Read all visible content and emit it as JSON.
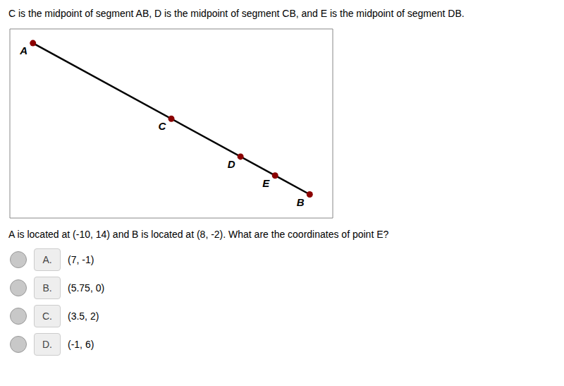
{
  "chart_data": {
    "type": "scatter",
    "title": "C is the midpoint of segment AB, D is the midpoint of segment CB, and E is the midpoint of segment DB.",
    "subtitle": "A is located at (-10, 14) and B is located at (8, -2). What are the coordinates of point E?",
    "xlim": [
      -11.5,
      9.5
    ],
    "ylim": [
      -4.5,
      15.5
    ],
    "tick_labels": false,
    "grid": false,
    "series": [
      {
        "type": "line",
        "color": "#000000",
        "line_style": "solid",
        "x": [
          -10,
          8
        ],
        "values": [
          14,
          -2
        ]
      },
      {
        "type": "scatter",
        "color": "#8B0000",
        "marker": "circle",
        "categories": [
          "A",
          "C",
          "D",
          "E",
          "B"
        ],
        "x": [
          -10,
          -1,
          3.5,
          5.75,
          8
        ],
        "values": [
          14,
          6,
          2,
          0,
          -2
        ]
      }
    ],
    "annotations": [
      {
        "label": "A.",
        "text": "(7, -1)"
      },
      {
        "label": "B.",
        "text": "(5.75, 0)"
      },
      {
        "label": "C.",
        "text": "(3.5, 2)"
      },
      {
        "label": "D.",
        "text": "(-1, 6)"
      }
    ]
  }
}
